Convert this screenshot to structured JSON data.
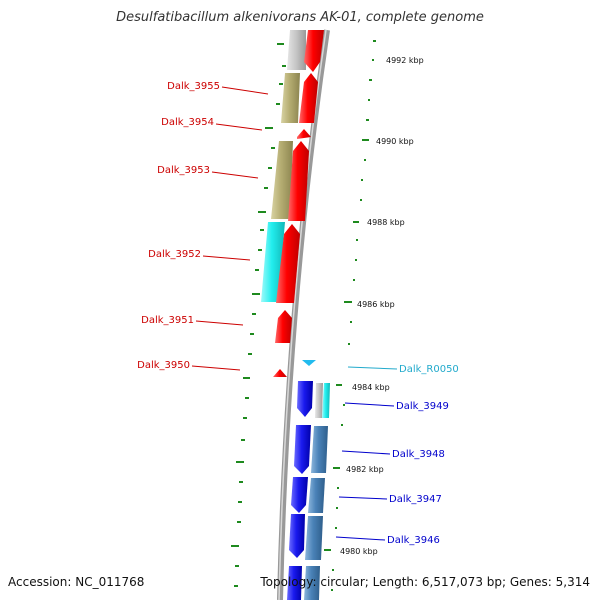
{
  "title": "Desulfatibacillum alkenivorans AK-01, complete genome",
  "accession": "Accession: NC_011768",
  "topology": "Topology: circular; Length: 6,517,073 bp; Genes: 5,314",
  "scale_labels": [
    "4992 kbp",
    "4990 kbp",
    "4988 kbp",
    "4986 kbp",
    "4984 kbp",
    "4982 kbp",
    "4980 kbp"
  ],
  "left_genes": [
    "Dalk_3955",
    "Dalk_3954",
    "Dalk_3953",
    "Dalk_3952",
    "Dalk_3951",
    "Dalk_3950"
  ],
  "right_genes": [
    "Dalk_R0050",
    "Dalk_3949",
    "Dalk_3948",
    "Dalk_3947",
    "Dalk_3946"
  ],
  "colors": {
    "gene_red": "#ff0000",
    "cog_tan": "#b5ad72",
    "cog_cyan": "#22eeee",
    "gene_blue": "#1a1aee",
    "cog_steel": "#4a82b8",
    "trna_cyan": "#22bbee",
    "backbone": "#999999",
    "ticks": "#1e8a1e",
    "label_red": "#cc0000",
    "label_blue": "#0000cc",
    "label_cyan": "#22aacc"
  }
}
